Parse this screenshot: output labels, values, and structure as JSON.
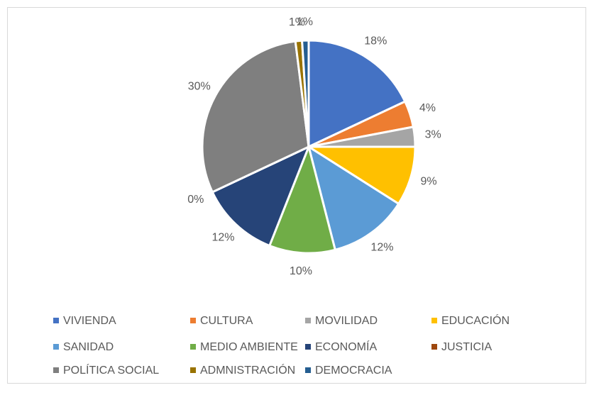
{
  "chart_data": {
    "type": "pie",
    "categories": [
      "VIVIENDA",
      "CULTURA",
      "MOVILIDAD",
      "EDUCACIÓN",
      "SANIDAD",
      "MEDIO AMBIENTE",
      "ECONOMÍA",
      "JUSTICIA",
      "POLÍTICA SOCIAL",
      "ADMNISTRACIÓN",
      "DEMOCRACIA"
    ],
    "values": [
      18,
      4,
      3,
      9,
      12,
      10,
      12,
      0,
      30,
      1,
      1
    ],
    "value_labels": [
      "18%",
      "4%",
      "3%",
      "9%",
      "12%",
      "10%",
      "12%",
      "0%",
      "30%",
      "1%",
      "1%"
    ],
    "colors": [
      "#4472c4",
      "#ed7d31",
      "#a5a5a5",
      "#ffc000",
      "#5b9bd5",
      "#70ad47",
      "#264478",
      "#9e480e",
      "#7f7f7f",
      "#997300",
      "#255e91"
    ],
    "legend": "bottom"
  }
}
